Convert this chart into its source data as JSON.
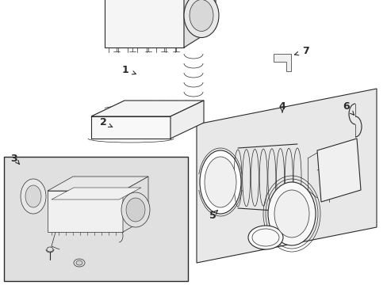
{
  "bg_color": "#ffffff",
  "lc": "#2a2a2a",
  "panel_fill": "#e8e8e8",
  "inset_fill": "#e0e0e0",
  "white_fill": "#ffffff",
  "label_size": 9
}
